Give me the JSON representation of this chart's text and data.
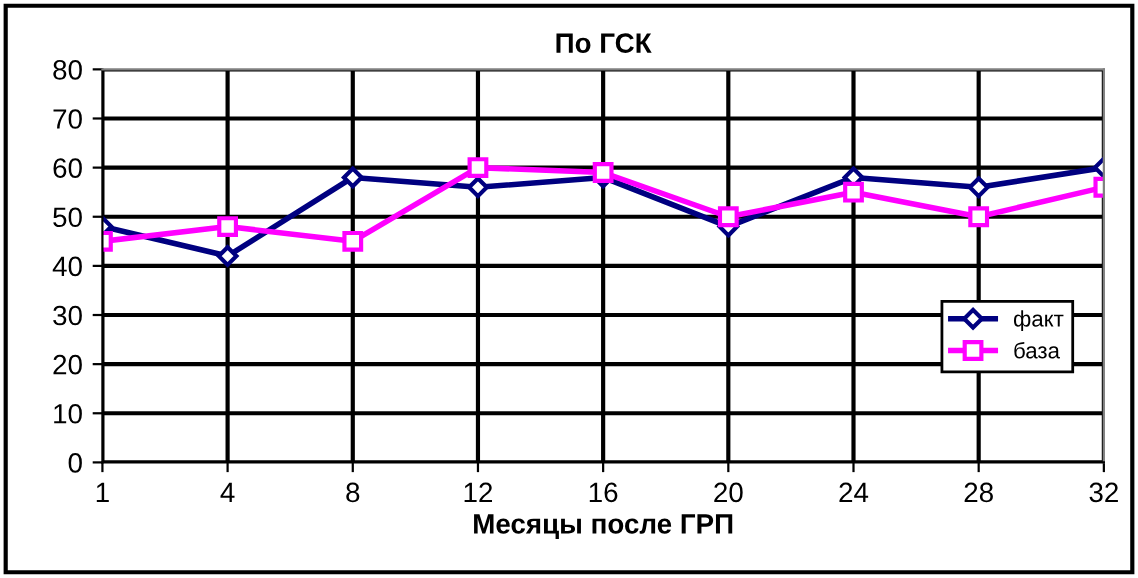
{
  "chart_data": {
    "type": "line",
    "title": "По ГСК",
    "xlabel": "Месяцы после ГРП",
    "categories": [
      "1",
      "4",
      "8",
      "12",
      "16",
      "20",
      "24",
      "28",
      "32"
    ],
    "series": [
      {
        "name": "факт",
        "color": "#000080",
        "marker": "diamond",
        "values": [
          48,
          42,
          58,
          56,
          58,
          48,
          58,
          56,
          60
        ]
      },
      {
        "name": "база",
        "color": "#ff00ff",
        "marker": "square",
        "values": [
          45,
          48,
          45,
          60,
          59,
          50,
          55,
          50,
          56
        ]
      }
    ],
    "ylim": [
      0,
      80
    ],
    "yticks": [
      0,
      10,
      20,
      30,
      40,
      50,
      60,
      70,
      80
    ],
    "grid": true,
    "legend": "right",
    "line_style": "solid"
  }
}
